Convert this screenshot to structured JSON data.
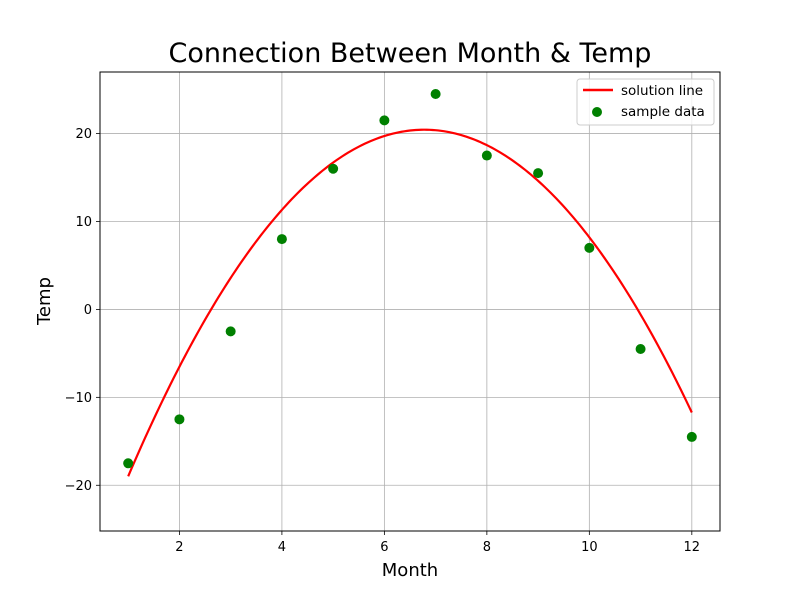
{
  "chart_data": {
    "type": "scatter",
    "title": "Connection Between Month & Temp",
    "xlabel": "Month",
    "ylabel": "Temp",
    "xlim": [
      0.45,
      12.55
    ],
    "ylim": [
      -25.2,
      27.0
    ],
    "xticks": [
      2,
      4,
      6,
      8,
      10,
      12
    ],
    "yticks": [
      -20,
      -10,
      0,
      10,
      20
    ],
    "xtick_labels": [
      "2",
      "4",
      "6",
      "8",
      "10",
      "12"
    ],
    "ytick_labels": [
      "−20",
      "−10",
      "0",
      "10",
      "20"
    ],
    "grid": true,
    "legend_position": "top-right",
    "series": [
      {
        "name": "solution line",
        "kind": "line",
        "color": "#ff0000",
        "quadratic_coefficients": [
          -1.18,
          16.0,
          -33.8
        ],
        "x_range": [
          1,
          12
        ]
      },
      {
        "name": "sample data",
        "kind": "scatter",
        "color": "#008000",
        "x": [
          1,
          2,
          3,
          4,
          5,
          6,
          7,
          8,
          9,
          10,
          11,
          12
        ],
        "y": [
          -17.5,
          -12.5,
          -2.5,
          8.0,
          16.0,
          21.5,
          24.5,
          17.5,
          15.5,
          7.0,
          -4.5,
          -14.5
        ]
      }
    ]
  }
}
